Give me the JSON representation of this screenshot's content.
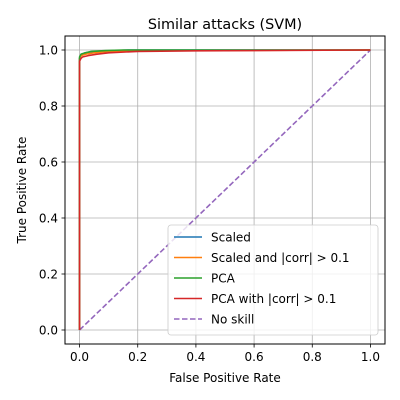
{
  "chart_data": {
    "type": "line",
    "title": "Similar attacks (SVM)",
    "xlabel": "False Positive Rate",
    "ylabel": "True Positive Rate",
    "xlim": [
      -0.05,
      1.05
    ],
    "ylim": [
      -0.05,
      1.05
    ],
    "xticks": [
      "0.0",
      "0.2",
      "0.4",
      "0.6",
      "0.8",
      "1.0"
    ],
    "yticks": [
      "0.0",
      "0.2",
      "0.4",
      "0.6",
      "0.8",
      "1.0"
    ],
    "grid": true,
    "legend_position": "lower-right",
    "series": [
      {
        "name": "Scaled",
        "color": "#1f77b4",
        "style": "solid",
        "points": [
          [
            0,
            0
          ],
          [
            0,
            0.97
          ],
          [
            0.005,
            0.985
          ],
          [
            0.02,
            0.99
          ],
          [
            0.05,
            0.995
          ],
          [
            0.17,
            1.0
          ],
          [
            1.0,
            1.0
          ]
        ]
      },
      {
        "name": "Scaled and |corr| > 0.1",
        "color": "#ff7f0e",
        "style": "solid",
        "points": [
          [
            0,
            0
          ],
          [
            0,
            0.97
          ],
          [
            0.005,
            0.98
          ],
          [
            0.02,
            0.985
          ],
          [
            0.05,
            0.99
          ],
          [
            0.1,
            0.995
          ],
          [
            0.3,
            0.998
          ],
          [
            1.0,
            1.0
          ]
        ]
      },
      {
        "name": "PCA",
        "color": "#2ca02c",
        "style": "solid",
        "points": [
          [
            0,
            0
          ],
          [
            0,
            0.975
          ],
          [
            0.005,
            0.985
          ],
          [
            0.02,
            0.99
          ],
          [
            0.04,
            0.995
          ],
          [
            0.09,
            0.998
          ],
          [
            0.15,
            1.0
          ],
          [
            1.0,
            1.0
          ]
        ]
      },
      {
        "name": "PCA with |corr| > 0.1",
        "color": "#d62728",
        "style": "solid",
        "points": [
          [
            0,
            0
          ],
          [
            0,
            0.96
          ],
          [
            0.005,
            0.97
          ],
          [
            0.01,
            0.975
          ],
          [
            0.03,
            0.98
          ],
          [
            0.06,
            0.985
          ],
          [
            0.1,
            0.99
          ],
          [
            0.2,
            0.995
          ],
          [
            0.4,
            0.997
          ],
          [
            1.0,
            1.0
          ]
        ]
      },
      {
        "name": "No skill",
        "color": "#9467bd",
        "style": "dashed",
        "points": [
          [
            0,
            0
          ],
          [
            1,
            1
          ]
        ]
      }
    ]
  }
}
